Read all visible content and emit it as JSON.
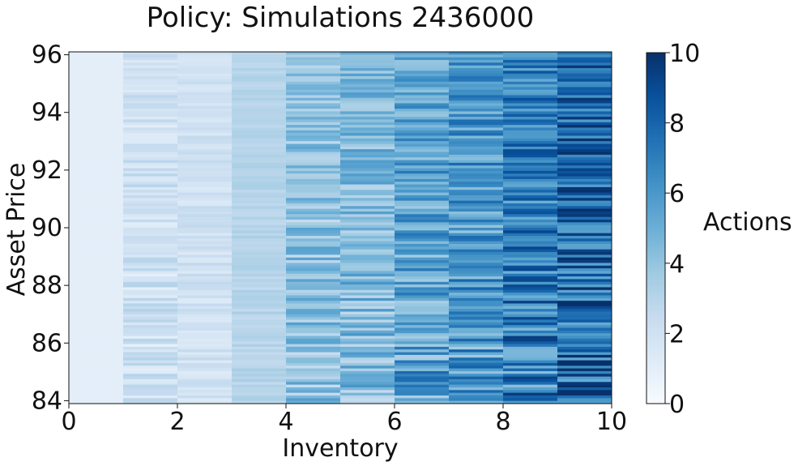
{
  "chart_data": {
    "type": "heatmap",
    "title": "Policy: Simulations 2436000",
    "xlabel": "Inventory",
    "ylabel": "Asset Price",
    "colorbar_label": "Actions",
    "colormap": "Blues",
    "xlim": [
      0,
      10
    ],
    "ylim": [
      83.9,
      96.1
    ],
    "vlim": [
      0,
      10
    ],
    "x_ticks": [
      0,
      2,
      4,
      6,
      8,
      10
    ],
    "x_tick_labels": [
      "0",
      "2",
      "4",
      "6",
      "8",
      "10"
    ],
    "y_ticks": [
      84,
      86,
      88,
      90,
      92,
      94,
      96
    ],
    "y_tick_labels": [
      "84",
      "86",
      "88",
      "90",
      "92",
      "94",
      "96"
    ],
    "colorbar_ticks": [
      0,
      2,
      4,
      6,
      8,
      10
    ],
    "colorbar_tick_labels": [
      "0",
      "2",
      "4",
      "6",
      "8",
      "10"
    ],
    "inventory_bins": [
      0,
      1,
      2,
      3,
      4,
      5,
      6,
      7,
      8,
      9
    ],
    "typical_action_by_inventory": [
      1,
      2,
      2,
      3,
      4,
      4.5,
      5.5,
      6,
      7,
      8
    ],
    "action_spread_by_inventory": [
      0,
      0.8,
      0.5,
      0.3,
      1.2,
      1.3,
      1.5,
      1.6,
      1.8,
      2.0
    ],
    "grid": false,
    "legend": "colorbar-right"
  }
}
